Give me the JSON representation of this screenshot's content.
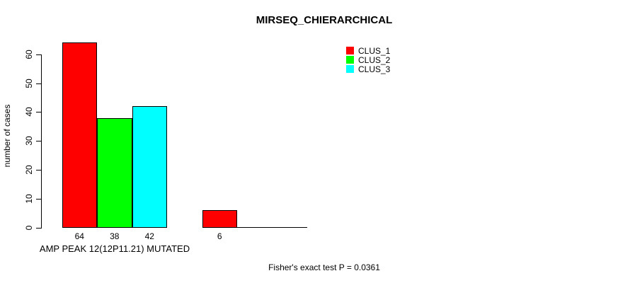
{
  "chart_data": {
    "type": "bar",
    "title": "MIRSEQ_CHIERARCHICAL",
    "ylabel": "number of cases",
    "xlabel": "AMP PEAK 12(12P11.21) MUTATED",
    "annotation": "Fisher's exact test P = 0.0361",
    "ylim": [
      0,
      60
    ],
    "yticks": [
      0,
      10,
      20,
      30,
      40,
      50,
      60
    ],
    "grid": false,
    "legend_position": "top-right",
    "groups": 2,
    "series": [
      {
        "name": "CLUS_1",
        "color": "#ff0000",
        "values": [
          64,
          6
        ]
      },
      {
        "name": "CLUS_2",
        "color": "#00ff00",
        "values": [
          38,
          0
        ]
      },
      {
        "name": "CLUS_3",
        "color": "#00ffff",
        "values": [
          42,
          0
        ]
      }
    ],
    "bar_value_labels_shown": [
      64,
      38,
      42,
      6
    ],
    "xlabel_position": "under-first-group"
  }
}
